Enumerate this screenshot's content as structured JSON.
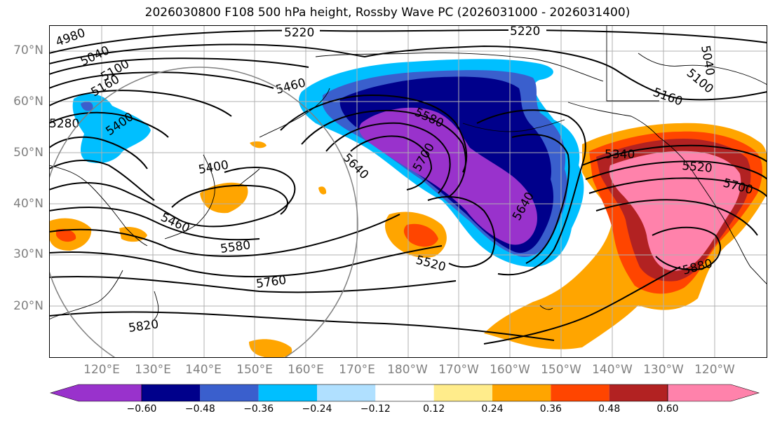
{
  "title": "2026030800 F108 500 hPa height, Rossby Wave PC (2026031000 - 2026031400)",
  "lat_labels": [
    "70°N",
    "60°N",
    "50°N",
    "40°N",
    "30°N",
    "20°N"
  ],
  "lon_labels": [
    "120°E",
    "130°E",
    "140°E",
    "150°E",
    "160°E",
    "170°E",
    "180°W",
    "170°W",
    "160°W",
    "150°W",
    "140°W",
    "130°W",
    "120°W"
  ],
  "contour_labels": [
    "5220",
    "5220",
    "4980",
    "5040",
    "5100",
    "5160",
    "5280",
    "5400",
    "5460",
    "5580",
    "5700",
    "5640",
    "5640",
    "5040",
    "5100",
    "5160",
    "5340",
    "5520",
    "5700",
    "5400",
    "5460",
    "5580",
    "5760",
    "5820",
    "5520",
    "5880"
  ],
  "colorbar": {
    "ticks": [
      "−0.60",
      "−0.48",
      "−0.36",
      "−0.24",
      "−0.12",
      "0.12",
      "0.24",
      "0.36",
      "0.48",
      "0.60"
    ],
    "colors": [
      "#9932cc",
      "#00008b",
      "#3a5fcd",
      "#00bfff",
      "#b0e0ff",
      "#ffffff",
      "#ffec8b",
      "#ffa500",
      "#ff4500",
      "#b22222",
      "#ff82ab"
    ]
  }
}
